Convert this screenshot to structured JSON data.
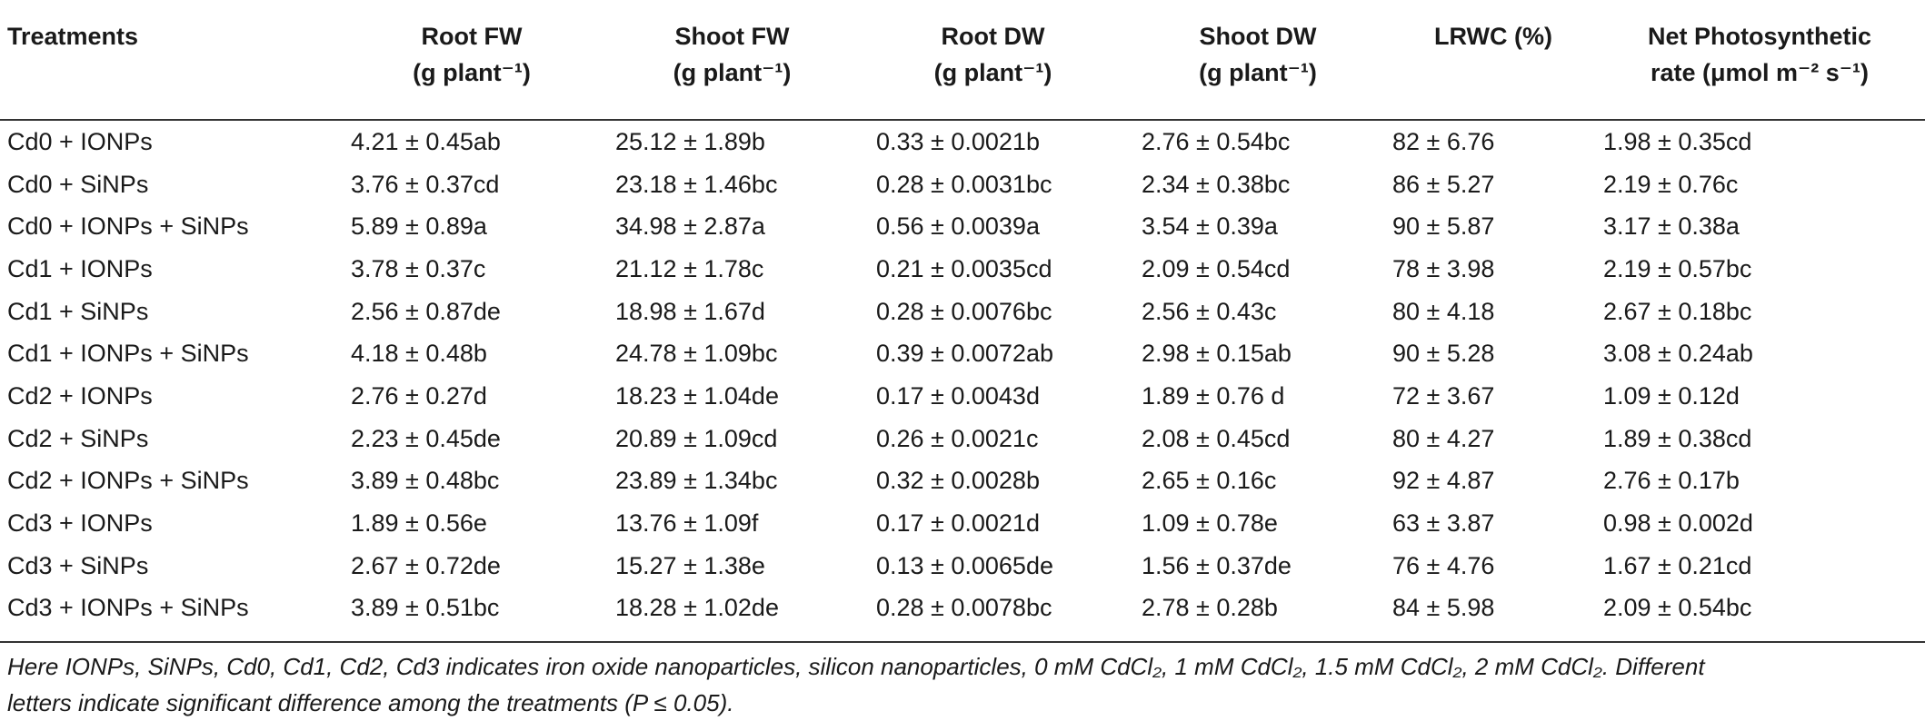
{
  "table": {
    "headers": [
      {
        "line1": "Treatments",
        "line2": ""
      },
      {
        "line1": "Root FW",
        "line2": "(g plant⁻¹)"
      },
      {
        "line1": "Shoot FW",
        "line2": "(g plant⁻¹)"
      },
      {
        "line1": "Root DW",
        "line2": "(g plant⁻¹)"
      },
      {
        "line1": "Shoot DW",
        "line2": "(g plant⁻¹)"
      },
      {
        "line1": "LRWC (%)",
        "line2": ""
      },
      {
        "line1": "Net Photosynthetic",
        "line2": "rate (μmol m⁻² s⁻¹)"
      }
    ],
    "rows": [
      [
        "Cd0 + IONPs",
        "4.21 ± 0.45ab",
        "25.12 ± 1.89b",
        "0.33 ± 0.0021b",
        "2.76 ± 0.54bc",
        "82 ± 6.76",
        "1.98 ± 0.35cd"
      ],
      [
        "Cd0 + SiNPs",
        "3.76 ± 0.37cd",
        "23.18 ± 1.46bc",
        "0.28 ± 0.0031bc",
        "2.34 ± 0.38bc",
        "86 ± 5.27",
        "2.19 ± 0.76c"
      ],
      [
        "Cd0 + IONPs + SiNPs",
        "5.89 ± 0.89a",
        "34.98 ± 2.87a",
        "0.56 ± 0.0039a",
        "3.54 ± 0.39a",
        "90 ± 5.87",
        "3.17 ± 0.38a"
      ],
      [
        "Cd1 + IONPs",
        "3.78 ± 0.37c",
        "21.12 ± 1.78c",
        "0.21 ± 0.0035cd",
        "2.09 ± 0.54cd",
        "78 ± 3.98",
        "2.19 ± 0.57bc"
      ],
      [
        "Cd1 + SiNPs",
        "2.56 ± 0.87de",
        "18.98 ± 1.67d",
        "0.28 ± 0.0076bc",
        "2.56 ± 0.43c",
        "80 ± 4.18",
        "2.67 ± 0.18bc"
      ],
      [
        "Cd1 + IONPs + SiNPs",
        "4.18 ± 0.48b",
        "24.78 ± 1.09bc",
        "0.39 ± 0.0072ab",
        "2.98 ± 0.15ab",
        "90 ± 5.28",
        "3.08 ± 0.24ab"
      ],
      [
        "Cd2 + IONPs",
        "2.76 ± 0.27d",
        "18.23 ± 1.04de",
        "0.17 ± 0.0043d",
        "1.89 ± 0.76 d",
        "72 ± 3.67",
        "1.09 ± 0.12d"
      ],
      [
        "Cd2 + SiNPs",
        "2.23 ± 0.45de",
        "20.89 ± 1.09cd",
        "0.26 ± 0.0021c",
        "2.08 ± 0.45cd",
        "80 ± 4.27",
        "1.89 ± 0.38cd"
      ],
      [
        "Cd2 + IONPs + SiNPs",
        "3.89 ± 0.48bc",
        "23.89 ± 1.34bc",
        "0.32 ± 0.0028b",
        "2.65 ± 0.16c",
        "92 ± 4.87",
        "2.76 ± 0.17b"
      ],
      [
        "Cd3 + IONPs",
        "1.89 ± 0.56e",
        "13.76 ± 1.09f",
        "0.17 ± 0.0021d",
        "1.09 ± 0.78e",
        "63 ± 3.87",
        "0.98 ± 0.002d"
      ],
      [
        "Cd3 + SiNPs",
        "2.67 ± 0.72de",
        "15.27 ± 1.38e",
        "0.13 ± 0.0065de",
        "1.56 ± 0.37de",
        "76 ± 4.76",
        "1.67 ± 0.21cd"
      ],
      [
        "Cd3 + IONPs + SiNPs",
        "3.89 ± 0.51bc",
        "18.28 ± 1.02de",
        "0.28 ± 0.0078bc",
        "2.78 ± 0.28b",
        "84 ± 5.98",
        "2.09 ± 0.54bc"
      ]
    ]
  },
  "footnote": {
    "line1": "Here IONPs, SiNPs, Cd0, Cd1, Cd2, Cd3 indicates iron oxide nanoparticles, silicon nanoparticles, 0 mM CdCl₂, 1 mM CdCl₂, 1.5 mM CdCl₂, 2 mM CdCl₂. Different",
    "line2": "letters indicate significant difference among the treatments (P ≤ 0.05)."
  }
}
